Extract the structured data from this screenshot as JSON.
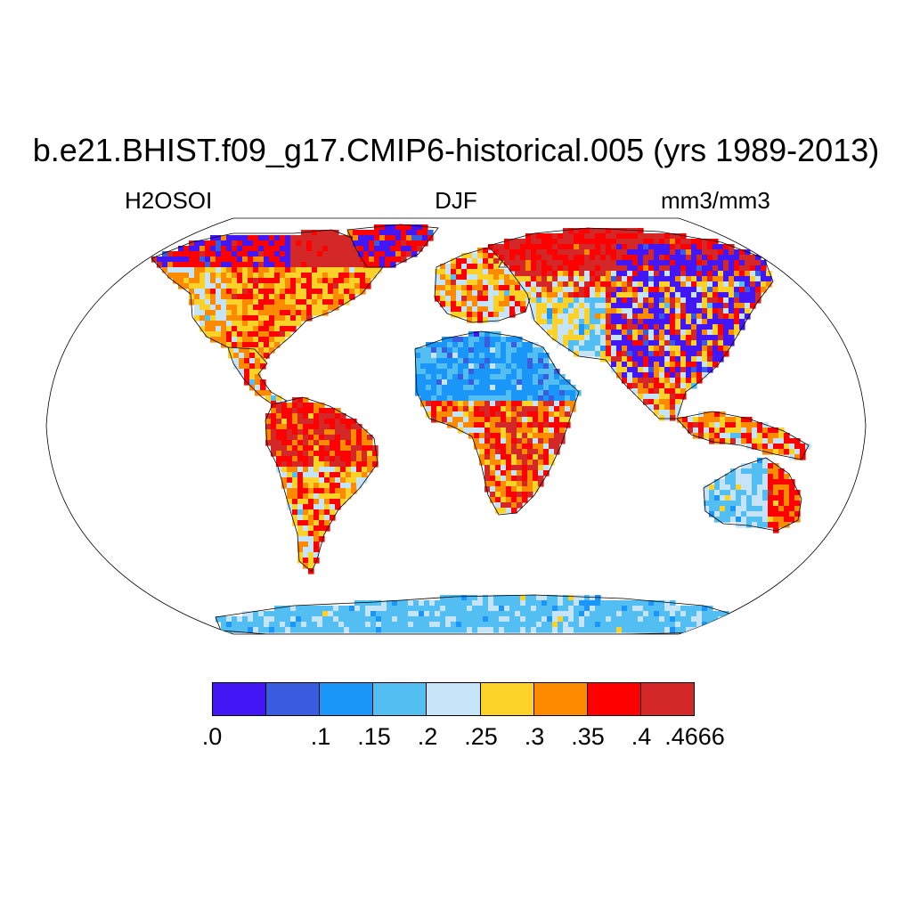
{
  "title": "b.e21.BHIST.f09_g17.CMIP6-historical.005 (yrs 1989-2013)",
  "left_label": "H2OSOI",
  "center_label": "DJF",
  "right_label": "mm3/mm3",
  "colorbar": {
    "colors": [
      "#4216F5",
      "#3A5DE0",
      "#1A96F9",
      "#52BEF1",
      "#C6E4F8",
      "#FCD128",
      "#FE8A00",
      "#FE0000",
      "#D42828"
    ],
    "ticks": [
      ".0",
      ".1",
      ".15",
      ".2",
      ".25",
      ".3",
      ".35",
      ".4",
      ".4666"
    ]
  },
  "map": {
    "projection": "Robinson",
    "ocean_color": "#ffffff",
    "coastline_color": "#000000"
  }
}
